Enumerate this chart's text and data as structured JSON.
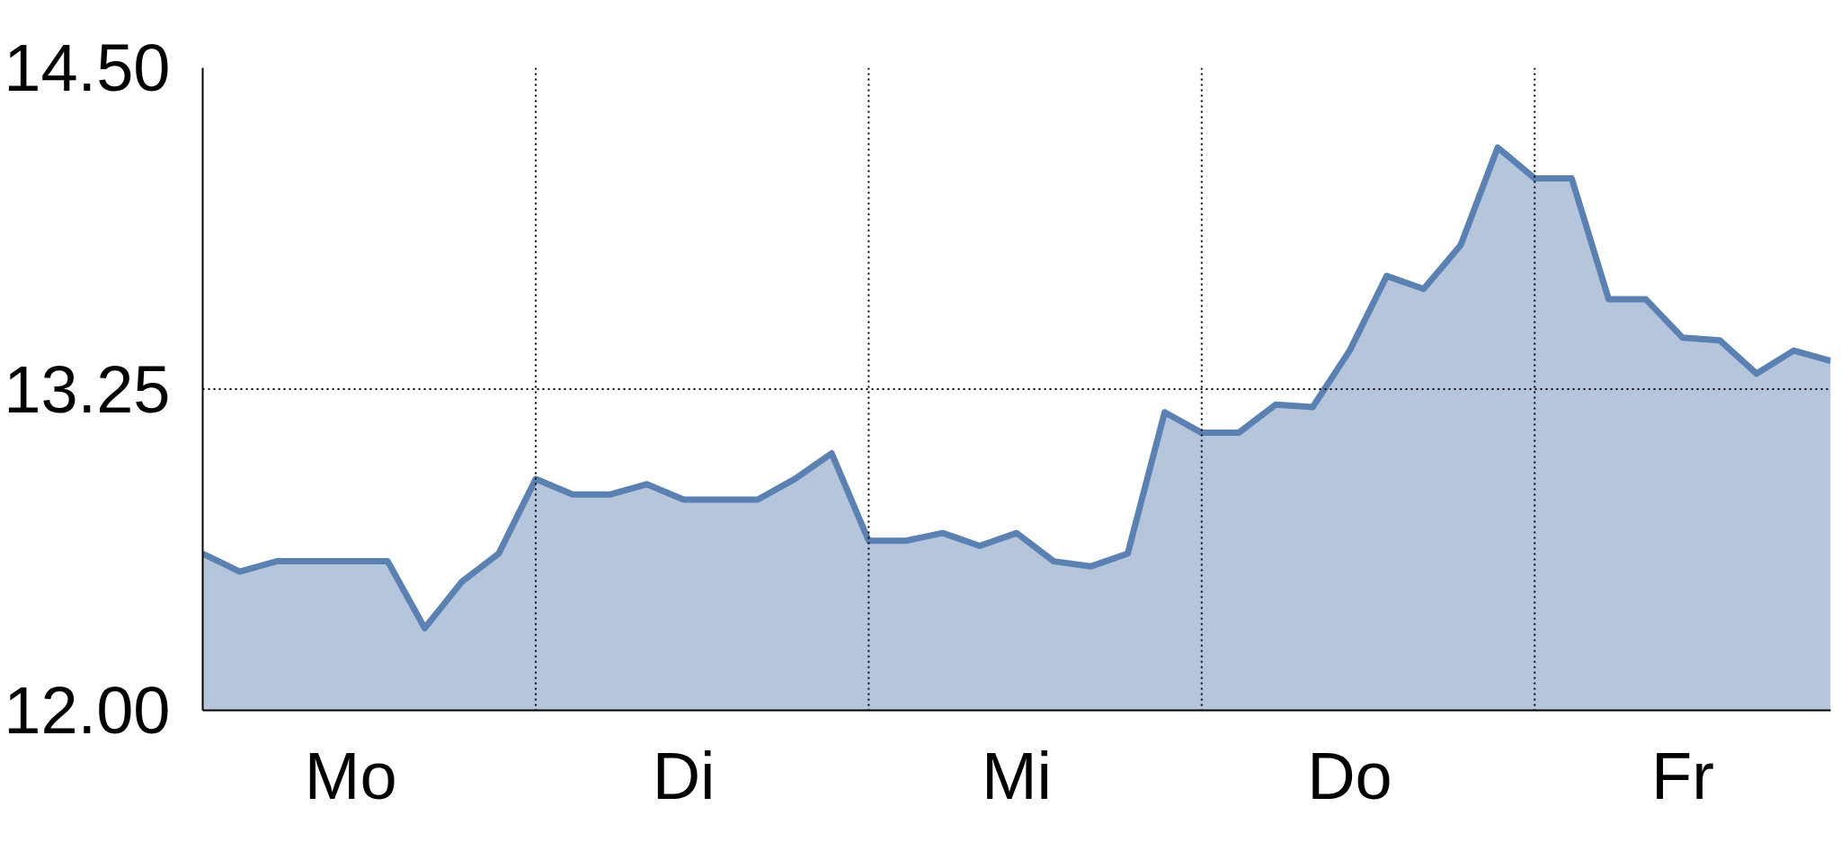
{
  "chart_data": {
    "type": "area",
    "categories": [
      null,
      null,
      null,
      null,
      "Mo",
      null,
      null,
      null,
      null,
      null,
      null,
      null,
      null,
      "Di",
      null,
      null,
      null,
      null,
      null,
      null,
      null,
      null,
      "Mi",
      null,
      null,
      null,
      null,
      null,
      null,
      null,
      null,
      "Do",
      null,
      null,
      null,
      null,
      null,
      null,
      null,
      null,
      "Fr",
      null,
      null,
      null,
      null
    ],
    "series": [
      {
        "color": "#5b80b2",
        "values": [
          12.61,
          12.54,
          12.58,
          12.58,
          12.58,
          12.58,
          12.32,
          12.5,
          12.61,
          12.9,
          12.84,
          12.84,
          12.88,
          12.82,
          12.82,
          12.82,
          12.9,
          13.0,
          12.66,
          12.66,
          12.69,
          12.64,
          12.69,
          12.58,
          12.56,
          12.61,
          13.16,
          13.08,
          13.08,
          13.19,
          13.18,
          13.4,
          13.69,
          13.64,
          13.81,
          14.19,
          14.07,
          14.07,
          13.6,
          13.6,
          13.45,
          13.44,
          13.31,
          13.4,
          13.36
        ]
      }
    ],
    "ylim": [
      12,
      14.5
    ],
    "yticks": [
      {
        "value": 12,
        "label": "12.00"
      },
      {
        "value": 13.25,
        "label": "13.25"
      },
      {
        "value": 14.5,
        "label": "14.50"
      }
    ],
    "ref_lines": [
      {
        "axis": "y",
        "value": 13.25,
        "line_style": "dotted"
      }
    ],
    "grid": "x"
  }
}
